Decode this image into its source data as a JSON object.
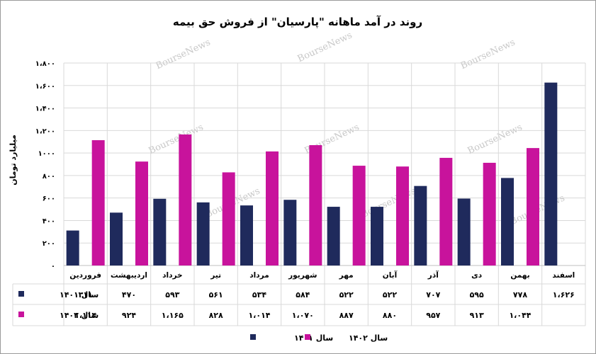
{
  "chart_data": {
    "type": "bar",
    "title": "روند در آمد ماهانه \"پارسیان\" از فروش حق بیمه",
    "ylabel": "میلیارد تومان",
    "xlabel": "",
    "categories": [
      "فروردین",
      "اردیبهشت",
      "خرداد",
      "تیر",
      "مرداد",
      "شهریور",
      "مهر",
      "آبان",
      "آذر",
      "دی",
      "بهمن",
      "اسفند"
    ],
    "ylim": [
      0,
      1800
    ],
    "yticks": [
      "۰",
      "۲۰۰",
      "۴۰۰",
      "۶۰۰",
      "۸۰۰",
      "۱۰۰۰",
      "۱،۲۰۰",
      "۱،۴۰۰",
      "۱،۶۰۰",
      "۱،۸۰۰"
    ],
    "grid": true,
    "legend_position": "bottom",
    "series": [
      {
        "name": "سال ۱۴۰۱",
        "color": "#1f2a5c",
        "values": [
          311,
          470,
          593,
          561,
          534,
          584,
          522,
          522,
          707,
          595,
          778,
          1626
        ],
        "labels": [
          "۳۱۱",
          "۴۷۰",
          "۵۹۳",
          "۵۶۱",
          "۵۳۴",
          "۵۸۴",
          "۵۲۲",
          "۵۲۲",
          "۷۰۷",
          "۵۹۵",
          "۷۷۸",
          "۱،۶۲۶"
        ]
      },
      {
        "name": "سال ۱۴۰۲",
        "color": "#c8139c",
        "values": [
          1114,
          924,
          1165,
          828,
          1014,
          1070,
          887,
          880,
          957,
          913,
          1044,
          null
        ],
        "labels": [
          "۱،۱۱۴",
          "۹۲۴",
          "۱،۱۶۵",
          "۸۲۸",
          "۱،۰۱۴",
          "۱،۰۷۰",
          "۸۸۷",
          "۸۸۰",
          "۹۵۷",
          "۹۱۳",
          "۱،۰۴۴",
          ""
        ]
      }
    ]
  },
  "watermark": "BourseNews"
}
